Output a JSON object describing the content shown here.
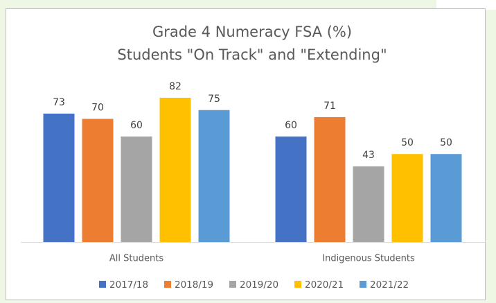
{
  "chart_data": {
    "type": "bar",
    "title": [
      "Grade 4 Numeracy FSA (%)",
      "Students \"On Track\" and \"Extending\""
    ],
    "categories": [
      "All Students",
      "Indigenous Students"
    ],
    "series": [
      {
        "name": "2017/18",
        "color": "#4472c4",
        "values": [
          73,
          60
        ]
      },
      {
        "name": "2018/19",
        "color": "#ed7d31",
        "values": [
          70,
          71
        ]
      },
      {
        "name": "2019/20",
        "color": "#a5a5a5",
        "values": [
          60,
          43
        ]
      },
      {
        "name": "2020/21",
        "color": "#ffc000",
        "values": [
          82,
          50
        ]
      },
      {
        "name": "2021/22",
        "color": "#5b9bd5",
        "values": [
          75,
          50
        ]
      }
    ]
  }
}
